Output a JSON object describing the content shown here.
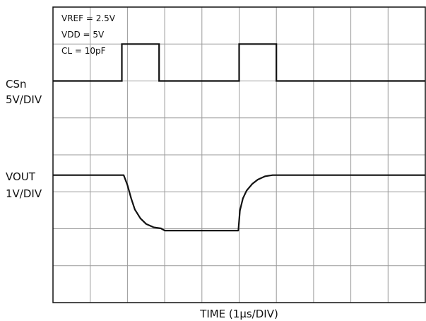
{
  "chart_data": {
    "type": "line",
    "title": "",
    "xlabel": "TIME (1µs/DIV)",
    "x_divisions": 10,
    "y_divisions": 8,
    "grid": true,
    "annotations": [
      "VREF = 2.5V",
      "VDD = 5V",
      "CL = 10pF"
    ],
    "channel_labels": [
      {
        "name": "CSn",
        "scale": "5V/DIV"
      },
      {
        "name": "VOUT",
        "scale": "1V/DIV"
      }
    ],
    "series": [
      {
        "name": "CSn",
        "unit_x": "µs",
        "unit_y": "divisions",
        "points": [
          [
            0.0,
            1.0
          ],
          [
            1.85,
            1.0
          ],
          [
            1.85,
            2.0
          ],
          [
            2.85,
            2.0
          ],
          [
            2.85,
            1.0
          ],
          [
            5.0,
            1.0
          ],
          [
            5.0,
            2.0
          ],
          [
            6.0,
            2.0
          ],
          [
            6.0,
            1.0
          ],
          [
            10.0,
            1.0
          ]
        ]
      },
      {
        "name": "VOUT",
        "unit_x": "µs",
        "unit_y": "V",
        "points": [
          [
            0.0,
            2.5
          ],
          [
            1.9,
            2.5
          ],
          [
            2.0,
            2.05
          ],
          [
            2.1,
            1.45
          ],
          [
            2.2,
            0.95
          ],
          [
            2.35,
            0.55
          ],
          [
            2.5,
            0.3
          ],
          [
            2.7,
            0.15
          ],
          [
            2.9,
            0.1
          ],
          [
            3.0,
            0.0
          ],
          [
            4.98,
            0.0
          ],
          [
            5.02,
            0.9
          ],
          [
            5.1,
            1.45
          ],
          [
            5.2,
            1.8
          ],
          [
            5.35,
            2.1
          ],
          [
            5.5,
            2.3
          ],
          [
            5.7,
            2.45
          ],
          [
            5.9,
            2.5
          ],
          [
            10.0,
            2.5
          ]
        ]
      }
    ]
  }
}
